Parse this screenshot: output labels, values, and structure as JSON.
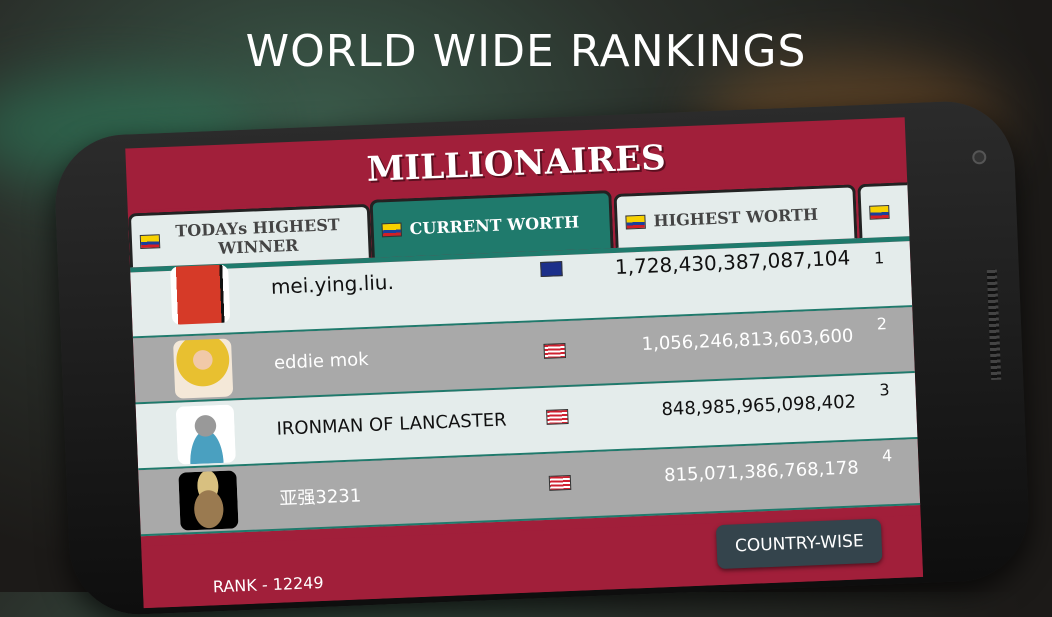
{
  "headline": "WORLD WIDE RANKINGS",
  "screen_title": "MILLIONAIRES",
  "tabs": [
    {
      "label": "TODAYs HIGHEST WINNER",
      "active": false
    },
    {
      "label": "CURRENT WORTH",
      "active": true
    },
    {
      "label": "HIGHEST WORTH",
      "active": false
    }
  ],
  "rows": [
    {
      "rank": "1",
      "name": "mei.ying.liu.",
      "worth": "1,728,430,387,087,104",
      "country_flag": "australia-flag"
    },
    {
      "rank": "2",
      "name": "eddie mok",
      "worth": "1,056,246,813,603,600",
      "country_flag": "malaysia-flag"
    },
    {
      "rank": "3",
      "name": "IRONMAN OF LANCASTER",
      "worth": "848,985,965,098,402",
      "country_flag": "malaysia-flag"
    },
    {
      "rank": "4",
      "name": "亚强3231",
      "worth": "815,071,386,768,178",
      "country_flag": "malaysia-flag"
    }
  ],
  "footer": {
    "rank_label": "RANK - 12249",
    "country_button": "COUNTRY-WISE"
  },
  "colors": {
    "primary": "#a11f3a",
    "accent": "#1f7a6c",
    "button": "#34444c"
  }
}
